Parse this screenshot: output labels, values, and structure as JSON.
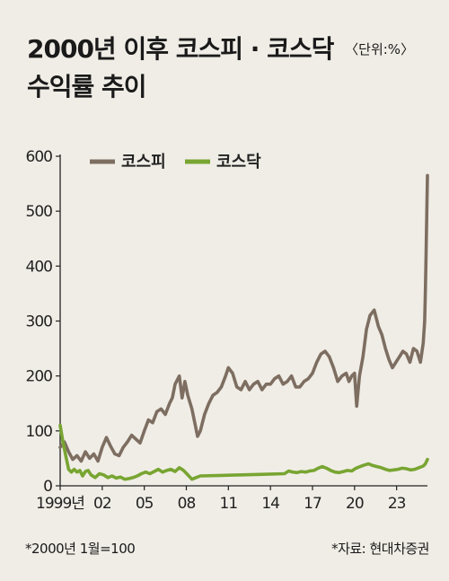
{
  "header": {
    "title_line1": "2000년 이후 코스피 · 코스닥",
    "unit": "〈단위:%〉",
    "title_line2": "수익률 추이"
  },
  "footnotes": {
    "base": "*2000년 1월=100",
    "source": "*자료: 현대차증권"
  },
  "chart_data": {
    "type": "line",
    "ylim": [
      0,
      600
    ],
    "xlim": [
      1999,
      2025.2
    ],
    "yticks": [
      0,
      100,
      200,
      300,
      400,
      500,
      600
    ],
    "xticks": [
      {
        "value": 1999,
        "label": "1999년"
      },
      {
        "value": 2002,
        "label": "02"
      },
      {
        "value": 2005,
        "label": "05"
      },
      {
        "value": 2008,
        "label": "08"
      },
      {
        "value": 2011,
        "label": "11"
      },
      {
        "value": 2014,
        "label": "14"
      },
      {
        "value": 2017,
        "label": "17"
      },
      {
        "value": 2020,
        "label": "20"
      },
      {
        "value": 2023,
        "label": "23"
      }
    ],
    "legend_position": "top-left",
    "series": [
      {
        "name": "코스피",
        "color": "#7d6e61",
        "points": [
          [
            1999.0,
            70
          ],
          [
            1999.3,
            80
          ],
          [
            1999.6,
            62
          ],
          [
            1999.9,
            48
          ],
          [
            2000.2,
            55
          ],
          [
            2000.5,
            45
          ],
          [
            2000.8,
            62
          ],
          [
            2001.1,
            50
          ],
          [
            2001.4,
            58
          ],
          [
            2001.7,
            45
          ],
          [
            2002.0,
            70
          ],
          [
            2002.3,
            88
          ],
          [
            2002.6,
            72
          ],
          [
            2002.9,
            58
          ],
          [
            2003.2,
            55
          ],
          [
            2003.5,
            70
          ],
          [
            2003.8,
            80
          ],
          [
            2004.1,
            92
          ],
          [
            2004.4,
            85
          ],
          [
            2004.7,
            78
          ],
          [
            2005.0,
            100
          ],
          [
            2005.3,
            120
          ],
          [
            2005.6,
            115
          ],
          [
            2005.9,
            135
          ],
          [
            2006.2,
            140
          ],
          [
            2006.5,
            130
          ],
          [
            2006.8,
            150
          ],
          [
            2007.0,
            160
          ],
          [
            2007.2,
            185
          ],
          [
            2007.5,
            200
          ],
          [
            2007.7,
            160
          ],
          [
            2007.9,
            190
          ],
          [
            2008.1,
            165
          ],
          [
            2008.4,
            140
          ],
          [
            2008.6,
            115
          ],
          [
            2008.8,
            90
          ],
          [
            2009.0,
            100
          ],
          [
            2009.3,
            130
          ],
          [
            2009.6,
            150
          ],
          [
            2009.9,
            165
          ],
          [
            2010.2,
            170
          ],
          [
            2010.5,
            180
          ],
          [
            2010.8,
            200
          ],
          [
            2011.0,
            215
          ],
          [
            2011.3,
            205
          ],
          [
            2011.6,
            180
          ],
          [
            2011.9,
            175
          ],
          [
            2012.2,
            190
          ],
          [
            2012.5,
            175
          ],
          [
            2012.8,
            185
          ],
          [
            2013.1,
            190
          ],
          [
            2013.4,
            175
          ],
          [
            2013.7,
            185
          ],
          [
            2014.0,
            185
          ],
          [
            2014.3,
            195
          ],
          [
            2014.6,
            200
          ],
          [
            2014.9,
            185
          ],
          [
            2015.2,
            190
          ],
          [
            2015.5,
            200
          ],
          [
            2015.8,
            180
          ],
          [
            2016.1,
            180
          ],
          [
            2016.4,
            190
          ],
          [
            2016.7,
            195
          ],
          [
            2017.0,
            205
          ],
          [
            2017.3,
            225
          ],
          [
            2017.6,
            240
          ],
          [
            2017.9,
            245
          ],
          [
            2018.2,
            235
          ],
          [
            2018.5,
            215
          ],
          [
            2018.8,
            190
          ],
          [
            2019.1,
            200
          ],
          [
            2019.4,
            205
          ],
          [
            2019.6,
            190
          ],
          [
            2019.8,
            200
          ],
          [
            2020.0,
            205
          ],
          [
            2020.15,
            145
          ],
          [
            2020.35,
            200
          ],
          [
            2020.6,
            235
          ],
          [
            2020.85,
            285
          ],
          [
            2021.1,
            310
          ],
          [
            2021.4,
            320
          ],
          [
            2021.7,
            290
          ],
          [
            2021.95,
            275
          ],
          [
            2022.2,
            250
          ],
          [
            2022.45,
            230
          ],
          [
            2022.7,
            215
          ],
          [
            2022.95,
            225
          ],
          [
            2023.2,
            235
          ],
          [
            2023.45,
            245
          ],
          [
            2023.7,
            240
          ],
          [
            2023.95,
            225
          ],
          [
            2024.2,
            250
          ],
          [
            2024.45,
            245
          ],
          [
            2024.7,
            225
          ],
          [
            2024.9,
            260
          ],
          [
            2025.0,
            300
          ],
          [
            2025.05,
            355
          ],
          [
            2025.1,
            415
          ],
          [
            2025.15,
            490
          ],
          [
            2025.2,
            565
          ]
        ]
      },
      {
        "name": "코스닥",
        "color": "#78a532",
        "points": [
          [
            1999.0,
            110
          ],
          [
            1999.2,
            80
          ],
          [
            1999.4,
            55
          ],
          [
            1999.6,
            30
          ],
          [
            1999.8,
            25
          ],
          [
            2000.0,
            30
          ],
          [
            2000.2,
            25
          ],
          [
            2000.4,
            28
          ],
          [
            2000.6,
            18
          ],
          [
            2000.8,
            26
          ],
          [
            2001.0,
            28
          ],
          [
            2001.2,
            20
          ],
          [
            2001.5,
            15
          ],
          [
            2001.8,
            22
          ],
          [
            2002.1,
            20
          ],
          [
            2002.4,
            15
          ],
          [
            2002.7,
            18
          ],
          [
            2003.0,
            14
          ],
          [
            2003.3,
            16
          ],
          [
            2003.6,
            12
          ],
          [
            2003.9,
            13
          ],
          [
            2004.2,
            15
          ],
          [
            2004.5,
            18
          ],
          [
            2004.8,
            22
          ],
          [
            2005.1,
            25
          ],
          [
            2005.4,
            22
          ],
          [
            2005.7,
            26
          ],
          [
            2006.0,
            30
          ],
          [
            2006.3,
            25
          ],
          [
            2006.6,
            28
          ],
          [
            2006.9,
            30
          ],
          [
            2007.2,
            26
          ],
          [
            2007.5,
            33
          ],
          [
            2007.8,
            28
          ],
          [
            2008.1,
            20
          ],
          [
            2008.4,
            12
          ],
          [
            2008.7,
            15
          ],
          [
            2009.0,
            18
          ],
          [
            2010.5,
            19
          ],
          [
            2012.0,
            20
          ],
          [
            2013.5,
            21
          ],
          [
            2015.0,
            22
          ],
          [
            2015.3,
            27
          ],
          [
            2015.6,
            25
          ],
          [
            2015.9,
            24
          ],
          [
            2016.2,
            26
          ],
          [
            2016.5,
            25
          ],
          [
            2016.8,
            27
          ],
          [
            2017.1,
            28
          ],
          [
            2017.4,
            32
          ],
          [
            2017.7,
            35
          ],
          [
            2018.0,
            32
          ],
          [
            2018.3,
            28
          ],
          [
            2018.6,
            25
          ],
          [
            2018.9,
            24
          ],
          [
            2019.2,
            26
          ],
          [
            2019.5,
            28
          ],
          [
            2019.8,
            27
          ],
          [
            2020.1,
            32
          ],
          [
            2020.4,
            35
          ],
          [
            2020.7,
            38
          ],
          [
            2021.0,
            40
          ],
          [
            2021.3,
            37
          ],
          [
            2021.6,
            35
          ],
          [
            2021.9,
            33
          ],
          [
            2022.2,
            30
          ],
          [
            2022.5,
            28
          ],
          [
            2022.8,
            29
          ],
          [
            2023.1,
            30
          ],
          [
            2023.4,
            32
          ],
          [
            2023.7,
            31
          ],
          [
            2024.0,
            29
          ],
          [
            2024.3,
            30
          ],
          [
            2024.6,
            33
          ],
          [
            2024.9,
            36
          ],
          [
            2025.05,
            40
          ],
          [
            2025.2,
            48
          ]
        ]
      }
    ]
  }
}
